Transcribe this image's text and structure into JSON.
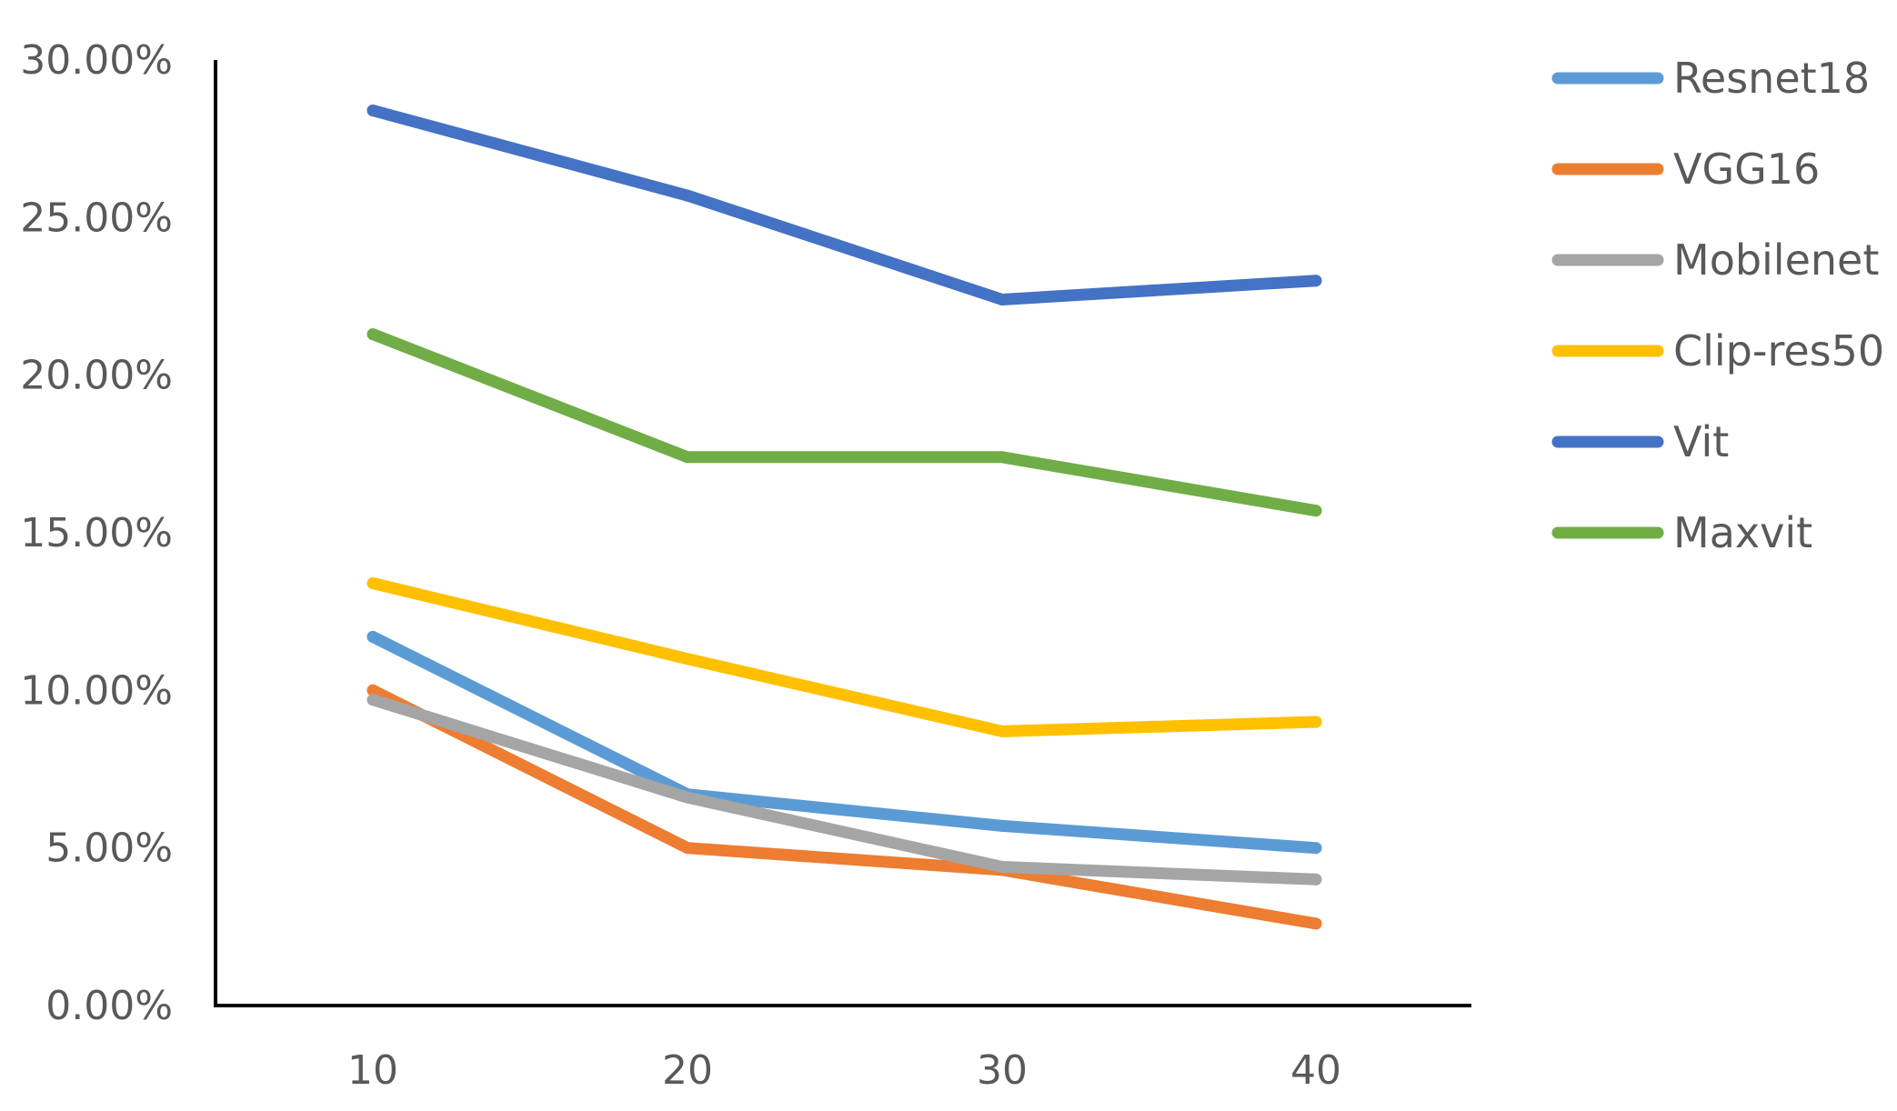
{
  "chart_data": {
    "type": "line",
    "title": "",
    "xlabel": "",
    "ylabel": "",
    "categories": [
      "10",
      "20",
      "30",
      "40"
    ],
    "y_tick_labels": [
      "0.00%",
      "5.00%",
      "10.00%",
      "15.00%",
      "20.00%",
      "25.00%",
      "30.00%"
    ],
    "ylim": [
      0,
      30
    ],
    "y_unit": "percent",
    "grid": false,
    "legend_position": "right",
    "series": [
      {
        "name": "Resnet18",
        "color": "#5B9BD5",
        "values": [
          11.7,
          6.7,
          5.7,
          5.0
        ]
      },
      {
        "name": "VGG16",
        "color": "#ED7D31",
        "values": [
          10.0,
          5.0,
          4.3,
          2.6
        ]
      },
      {
        "name": "Mobilenet",
        "color": "#A5A5A5",
        "values": [
          9.7,
          6.6,
          4.4,
          4.0
        ]
      },
      {
        "name": "Clip-res50",
        "color": "#FFC000",
        "values": [
          13.4,
          11.0,
          8.7,
          9.0
        ]
      },
      {
        "name": "Vit",
        "color": "#4472C4",
        "values": [
          28.4,
          25.7,
          22.4,
          23.0
        ]
      },
      {
        "name": "Maxvit",
        "color": "#70AD47",
        "values": [
          21.3,
          17.4,
          17.4,
          15.7
        ]
      }
    ]
  }
}
